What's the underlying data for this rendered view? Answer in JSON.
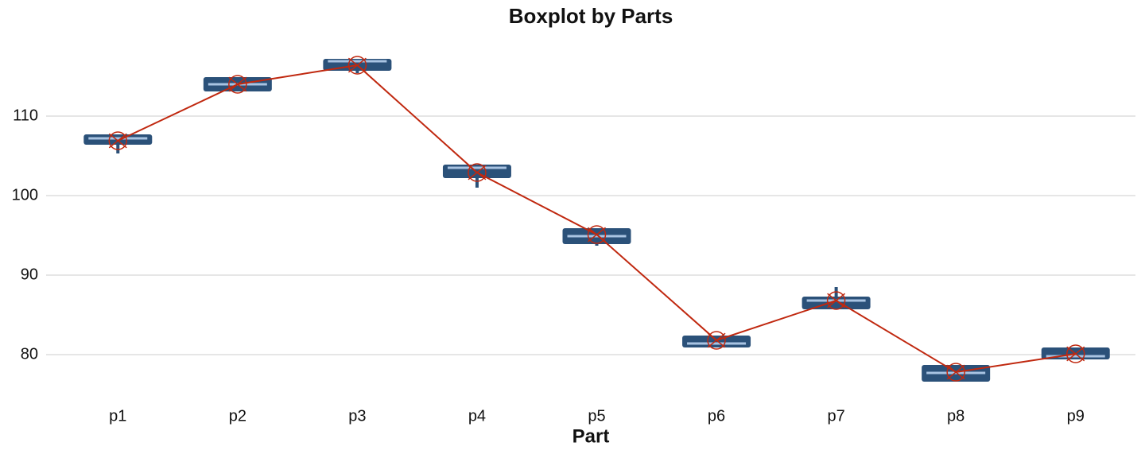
{
  "chart_data": {
    "type": "box",
    "title": "Boxplot by Parts",
    "x_label": "Part",
    "categories": [
      "p1",
      "p2",
      "p3",
      "p4",
      "p5",
      "p6",
      "p7",
      "p8",
      "p9"
    ],
    "min": [
      105.3,
      113.1,
      115.4,
      101.0,
      93.7,
      80.9,
      85.7,
      76.6,
      79.4
    ],
    "q1": [
      106.4,
      113.1,
      115.7,
      102.2,
      93.9,
      80.9,
      85.7,
      76.6,
      79.4
    ],
    "median": [
      107.2,
      114.0,
      116.9,
      103.5,
      94.9,
      81.4,
      86.8,
      77.7,
      79.8
    ],
    "q3": [
      107.7,
      114.9,
      117.2,
      103.9,
      95.9,
      82.4,
      87.3,
      78.7,
      80.9
    ],
    "max": [
      107.7,
      114.9,
      117.2,
      103.9,
      95.9,
      82.4,
      88.5,
      78.7,
      80.9
    ],
    "mean": [
      106.9,
      114.0,
      116.4,
      102.9,
      95.1,
      81.8,
      86.8,
      77.8,
      80.1
    ],
    "box_color": "#2b5179",
    "median_color": "#a9c4e2",
    "mean_color": "#c0280f",
    "ylim": [
      75,
      120
    ],
    "yticks": [
      80,
      90,
      100,
      110
    ],
    "grid": true
  }
}
